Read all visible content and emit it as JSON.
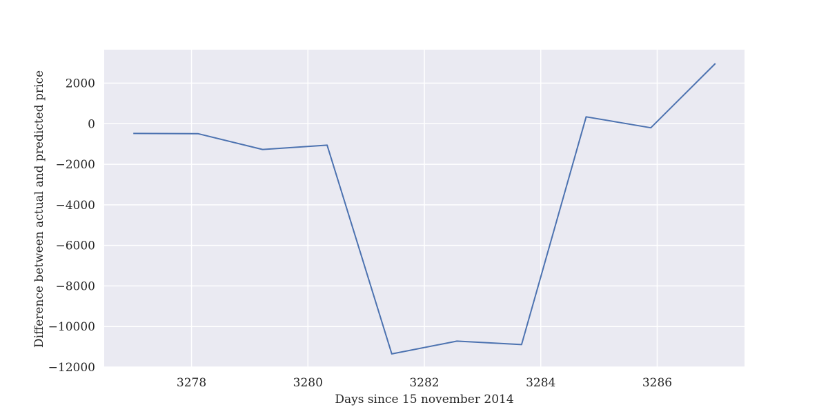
{
  "chart_data": {
    "type": "line",
    "title": "",
    "xlabel": "Days since 15 november 2014",
    "ylabel": "Difference between actual and predicted price",
    "xlim": [
      3276.5,
      3287.5
    ],
    "ylim": [
      -12000,
      3650
    ],
    "xticks": [
      3278,
      3280,
      3282,
      3284,
      3286
    ],
    "yticks": [
      -12000,
      -10000,
      -8000,
      -6000,
      -4000,
      -2000,
      0,
      2000
    ],
    "grid": true,
    "legend": "none",
    "colors": {
      "background": "#eaeaf2",
      "grid": "#ffffff",
      "line": "#4c72b0"
    },
    "series": [
      {
        "x": [
          3277,
          3278.11,
          3279.22,
          3280.33,
          3281.44,
          3282.56,
          3283.67,
          3284.78,
          3285.89,
          3287
        ],
        "values": [
          -480,
          -490,
          -1270,
          -1060,
          -11350,
          -10720,
          -10890,
          340,
          -200,
          2970
        ]
      }
    ]
  }
}
